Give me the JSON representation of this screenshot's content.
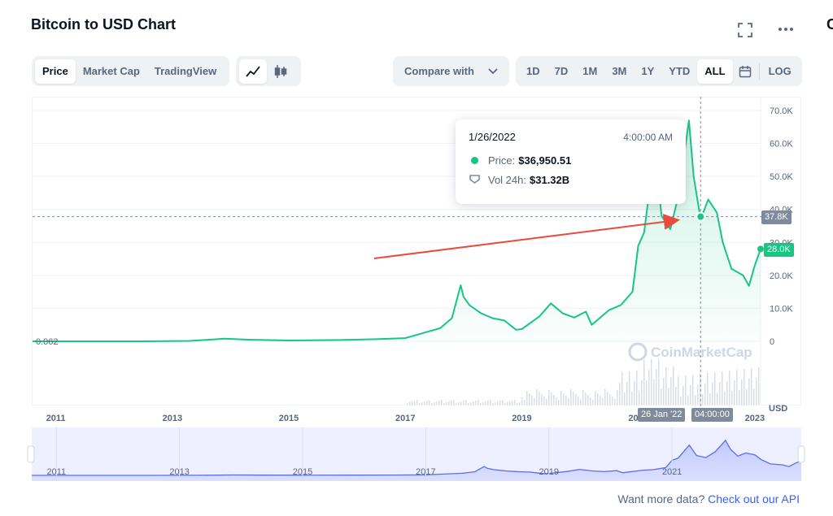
{
  "header": {
    "title": "Bitcoin to USD Chart",
    "side_cut_text": "C"
  },
  "toolbar": {
    "view_tabs": [
      {
        "label": "Price",
        "active": true
      },
      {
        "label": "Market Cap",
        "active": false
      },
      {
        "label": "TradingView",
        "active": false
      }
    ],
    "chart_types": [
      {
        "icon": "line-chart-icon",
        "active": true
      },
      {
        "icon": "candlestick-icon",
        "active": false
      }
    ],
    "compare_label": "Compare with",
    "ranges": [
      {
        "label": "1D",
        "active": false
      },
      {
        "label": "7D",
        "active": false
      },
      {
        "label": "1M",
        "active": false
      },
      {
        "label": "3M",
        "active": false
      },
      {
        "label": "1Y",
        "active": false
      },
      {
        "label": "YTD",
        "active": false
      },
      {
        "label": "ALL",
        "active": true
      }
    ],
    "log_label": "LOG"
  },
  "tooltip": {
    "date": "1/26/2022",
    "time": "4:00:00 AM",
    "price_label": "Price:",
    "price_value": "$36,950.51",
    "vol_label": "Vol 24h:",
    "vol_value": "$31.32B"
  },
  "crosshair": {
    "price_tag": "37.8K",
    "date_tag": "26 Jan '22",
    "time_tag": "04:00:00"
  },
  "current_price_tag": "28.0K",
  "left_value_label": "0.062",
  "y_unit": "USD",
  "watermark": "CoinMarketCap",
  "footer": {
    "text": "Want more data?",
    "link": "Check out our API"
  },
  "colors": {
    "line": "#16c784",
    "accent": "#3861fb",
    "annotation_arrow": "#e74c3c",
    "crosshair_tag": "#808a9d"
  },
  "chart_data": {
    "type": "line",
    "title": "Bitcoin to USD Chart",
    "ylabel": "USD",
    "ylim": [
      0,
      70000
    ],
    "yticks": [
      {
        "value": 0,
        "label": "0"
      },
      {
        "value": 10000,
        "label": "10.0K"
      },
      {
        "value": 20000,
        "label": "20.0K"
      },
      {
        "value": 30000,
        "label": "30.0K"
      },
      {
        "value": 40000,
        "label": "40.0K"
      },
      {
        "value": 50000,
        "label": "50.0K"
      },
      {
        "value": 60000,
        "label": "60.0K"
      },
      {
        "value": 70000,
        "label": "70.0K"
      }
    ],
    "xlim": [
      2010.6,
      2023.1
    ],
    "xticks": [
      "2011",
      "2013",
      "2015",
      "2017",
      "2019",
      "2021",
      "2023"
    ],
    "navigator_xticks": [
      "2011",
      "2013",
      "2015",
      "2017",
      "2019",
      "2021"
    ],
    "series": [
      {
        "x": [
          2010.6,
          2011.5,
          2012.5,
          2013.3,
          2013.9,
          2014.3,
          2015.0,
          2015.9,
          2016.5,
          2017.0,
          2017.3,
          2017.6,
          2017.8,
          2017.95,
          2018.0,
          2018.1,
          2018.3,
          2018.5,
          2018.7,
          2018.9,
          2019.0,
          2019.3,
          2019.5,
          2019.7,
          2019.9,
          2020.1,
          2020.2,
          2020.5,
          2020.7,
          2020.9,
          2021.0,
          2021.1,
          2021.28,
          2021.4,
          2021.55,
          2021.7,
          2021.87,
          2021.95,
          2022.07,
          2022.2,
          2022.35,
          2022.45,
          2022.6,
          2022.8,
          2022.9,
          2023.0,
          2023.1
        ],
        "y": [
          0.062,
          5,
          10,
          130,
          800,
          500,
          250,
          400,
          650,
          950,
          2500,
          4000,
          7000,
          17000,
          13500,
          11000,
          8500,
          7000,
          6300,
          3500,
          3700,
          7500,
          11500,
          8500,
          7200,
          9000,
          5000,
          9500,
          11000,
          15000,
          29000,
          33000,
          58000,
          38000,
          34000,
          45000,
          67000,
          50000,
          36950,
          43000,
          39000,
          30000,
          22000,
          20000,
          16800,
          23000,
          28000
        ]
      }
    ],
    "crosshair": {
      "date": "2022-01-26",
      "price": 37800
    },
    "current_price": 28000
  }
}
